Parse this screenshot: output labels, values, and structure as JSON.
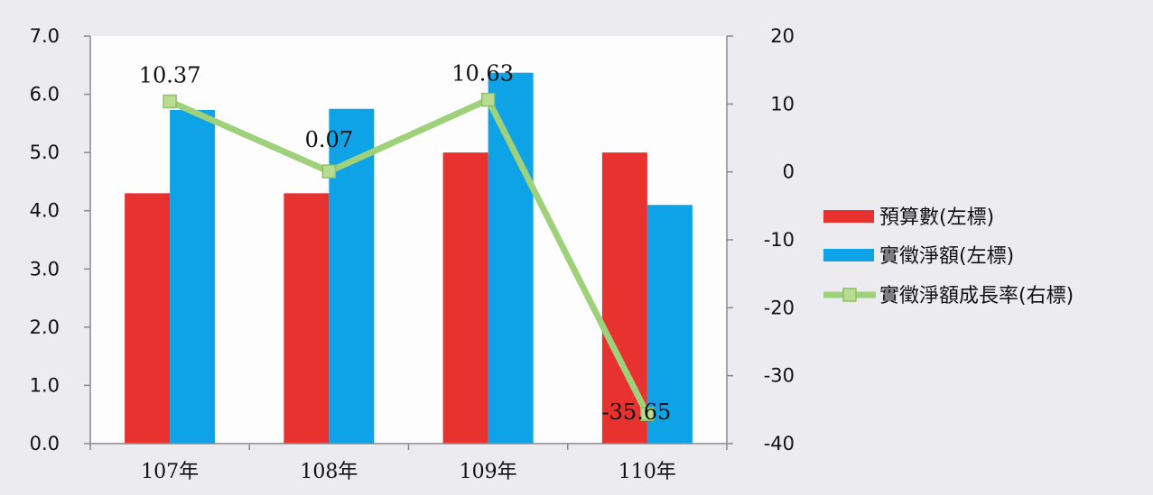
{
  "chart_data": {
    "type": "bar",
    "categories": [
      "107年",
      "108年",
      "109年",
      "110年"
    ],
    "series": [
      {
        "name": "預算數(左標)",
        "type": "bar",
        "axis": "left",
        "color": "#e8322f",
        "values": [
          4.3,
          4.3,
          5.0,
          5.0
        ]
      },
      {
        "name": "實徵淨額(左標)",
        "type": "bar",
        "axis": "left",
        "color": "#0ea2e6",
        "values": [
          5.73,
          5.75,
          6.37,
          4.1
        ]
      },
      {
        "name": "實徵淨額成長率(右標)",
        "type": "line",
        "axis": "right",
        "color": "#9fd07a",
        "marker_color": "#b8dc92",
        "values": [
          10.37,
          0.07,
          10.63,
          -35.65
        ],
        "labels": [
          "10.37",
          "0.07",
          "10.63",
          "-35.65"
        ]
      }
    ],
    "y_left": {
      "min": 0,
      "max": 7,
      "step": 1,
      "tick_labels": [
        "0.0",
        "1.0",
        "2.0",
        "3.0",
        "4.0",
        "5.0",
        "6.0",
        "7.0"
      ]
    },
    "y_right": {
      "min": -40,
      "max": 20,
      "step": 10,
      "tick_labels": [
        "-40",
        "-30",
        "-20",
        "-10",
        "0",
        "10",
        "20"
      ]
    },
    "plot_background": "#fdfdfd",
    "grid": false,
    "legend_position": "right"
  }
}
